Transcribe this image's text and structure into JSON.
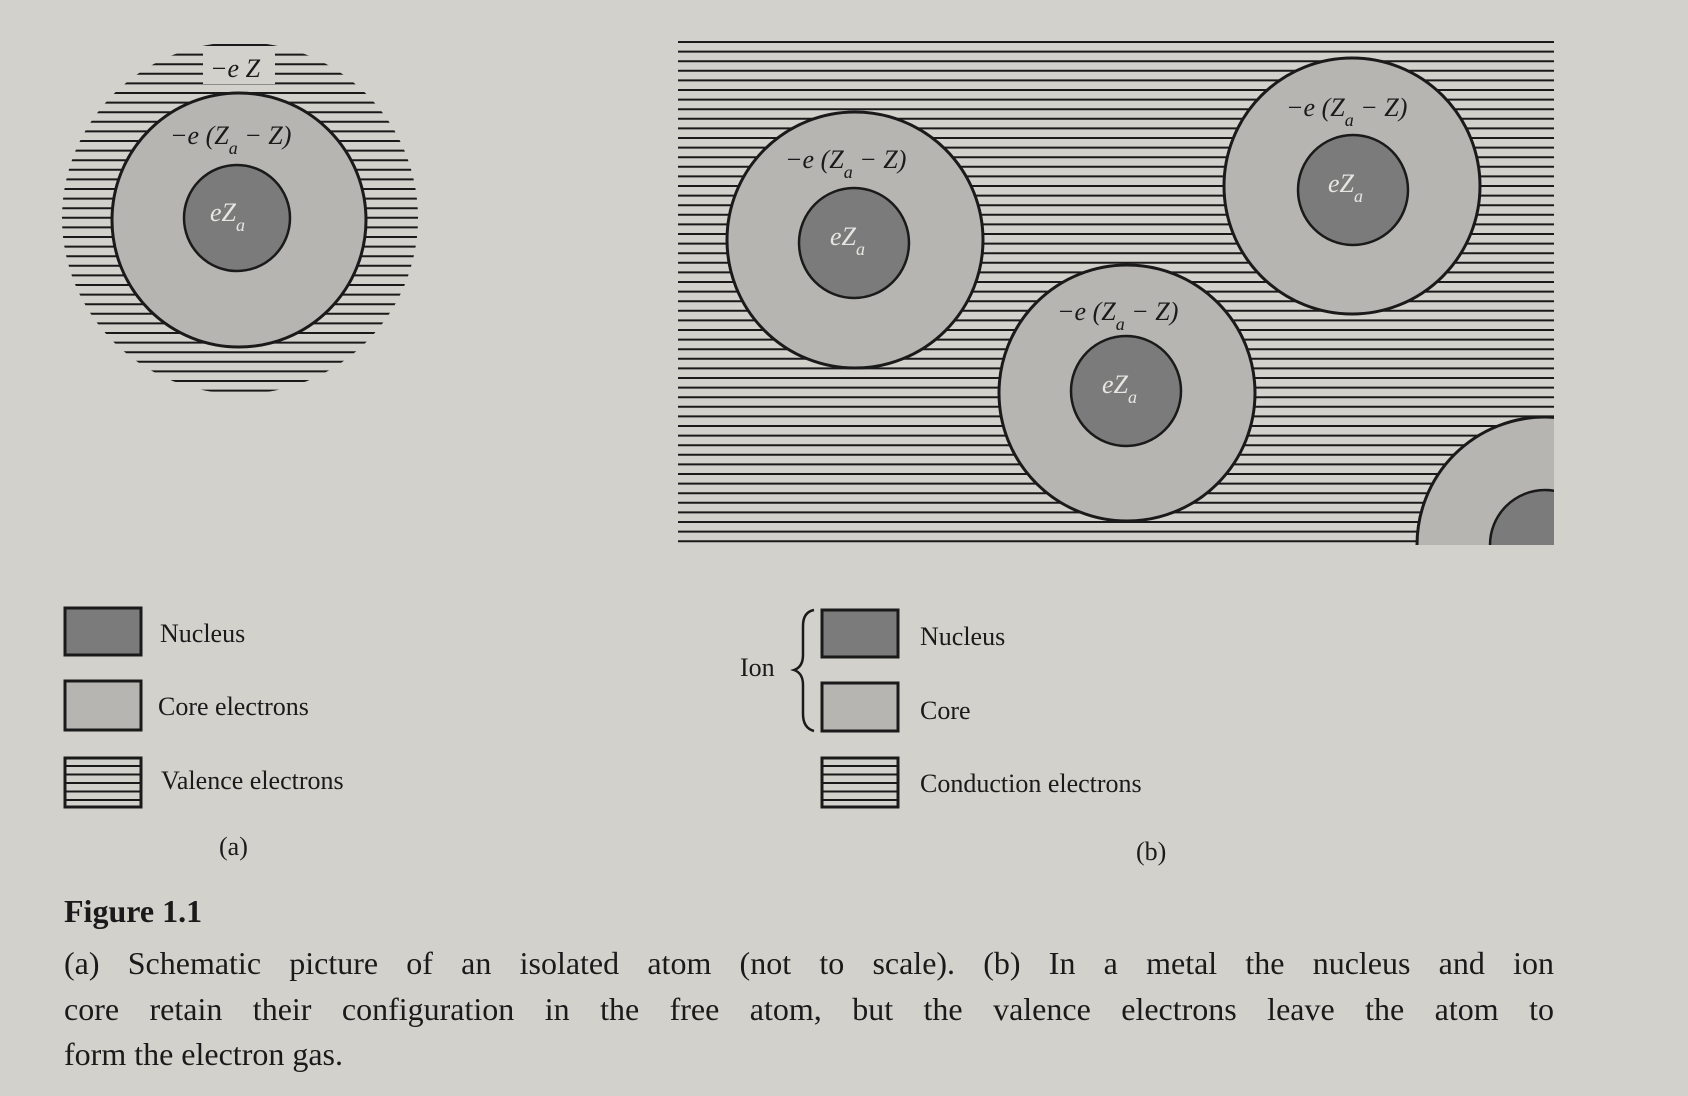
{
  "panel_a": {
    "letter": "(a)",
    "valence_label": "−e Z",
    "core_label": "−e (Z",
    "core_label_sub": "a",
    "core_label_tail": " − Z)",
    "nucleus_label": "eZ",
    "nucleus_label_sub": "a",
    "legend": {
      "nucleus": "Nucleus",
      "core": "Core electrons",
      "valence": "Valence electrons"
    }
  },
  "panel_b": {
    "letter": "(b)",
    "core_label": "−e (Z",
    "core_label_sub": "a",
    "core_label_tail": " − Z)",
    "nucleus_label": "eZ",
    "nucleus_label_sub": "a",
    "legend": {
      "ion": "Ion",
      "nucleus": "Nucleus",
      "core": "Core",
      "conduction": "Conduction electrons"
    }
  },
  "caption": {
    "title": "Figure 1.1",
    "line1": "(a) Schematic picture of an isolated atom (not to scale). (b) In a metal the nucleus and ion",
    "line2": "core retain their configuration in the free atom, but the valence electrons leave the atom to",
    "line3": "form the electron gas."
  },
  "colors": {
    "nucleus": "#7b7b7b",
    "core": "#b6b5b2",
    "lines": "#1a1a1a",
    "background": "#d3d1cc"
  }
}
